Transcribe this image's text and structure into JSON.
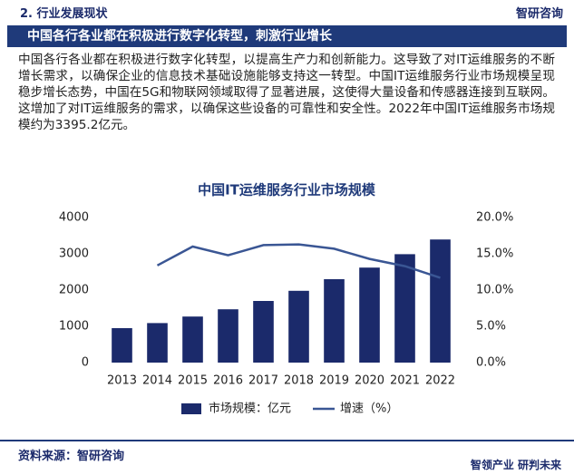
{
  "header": {
    "section": "2. 行业发展现状",
    "logo": "智研咨询"
  },
  "banner": "中国各行各业都在积极进行数字化转型，刺激行业增长",
  "paragraph": "中国各行各业都在积极进行数字化转型，以提高生产力和创新能力。这导致了对IT运维服务的不断增长需求，以确保企业的信息技术基础设施能够支持这一转型。中国IT运维服务行业市场规模呈现稳步增长态势，中国在5G和物联网领域取得了显著进展，这使得大量设备和传感器连接到互联网。这增加了对IT运维服务的需求，以确保这些设备的可靠性和安全性。2022年中国IT运维服务市场规模约为3395.2亿元。",
  "chart_data": {
    "type": "bar",
    "title": "中国IT运维服务行业市场规模",
    "categories": [
      "2013",
      "2014",
      "2015",
      "2016",
      "2017",
      "2018",
      "2019",
      "2020",
      "2021",
      "2022"
    ],
    "series": [
      {
        "name": "市场规模：亿元",
        "color": "#1b2a6b",
        "type": "bar",
        "values": [
          950,
          1090,
          1270,
          1470,
          1700,
          1980,
          2300,
          2620,
          2990,
          3395.2
        ]
      },
      {
        "name": "增速（%）",
        "color": "#3a5694",
        "type": "line",
        "axis": "y2",
        "values": [
          null,
          13.4,
          16.0,
          14.8,
          16.2,
          16.3,
          15.7,
          14.3,
          13.3,
          11.7
        ]
      }
    ],
    "ylim": [
      0,
      4000
    ],
    "yticks": [
      0,
      1000,
      2000,
      3000,
      4000
    ],
    "y2lim": [
      0,
      20
    ],
    "y2ticks": [
      {
        "value": 0,
        "label": "0.0%"
      },
      {
        "value": 5,
        "label": "5.0%"
      },
      {
        "value": 10,
        "label": "10.0%"
      },
      {
        "value": 15,
        "label": "15.0%"
      },
      {
        "value": 20,
        "label": "20.0%"
      }
    ]
  },
  "source": "资料来源：智研咨询",
  "footer": "智领产业  研判未来"
}
